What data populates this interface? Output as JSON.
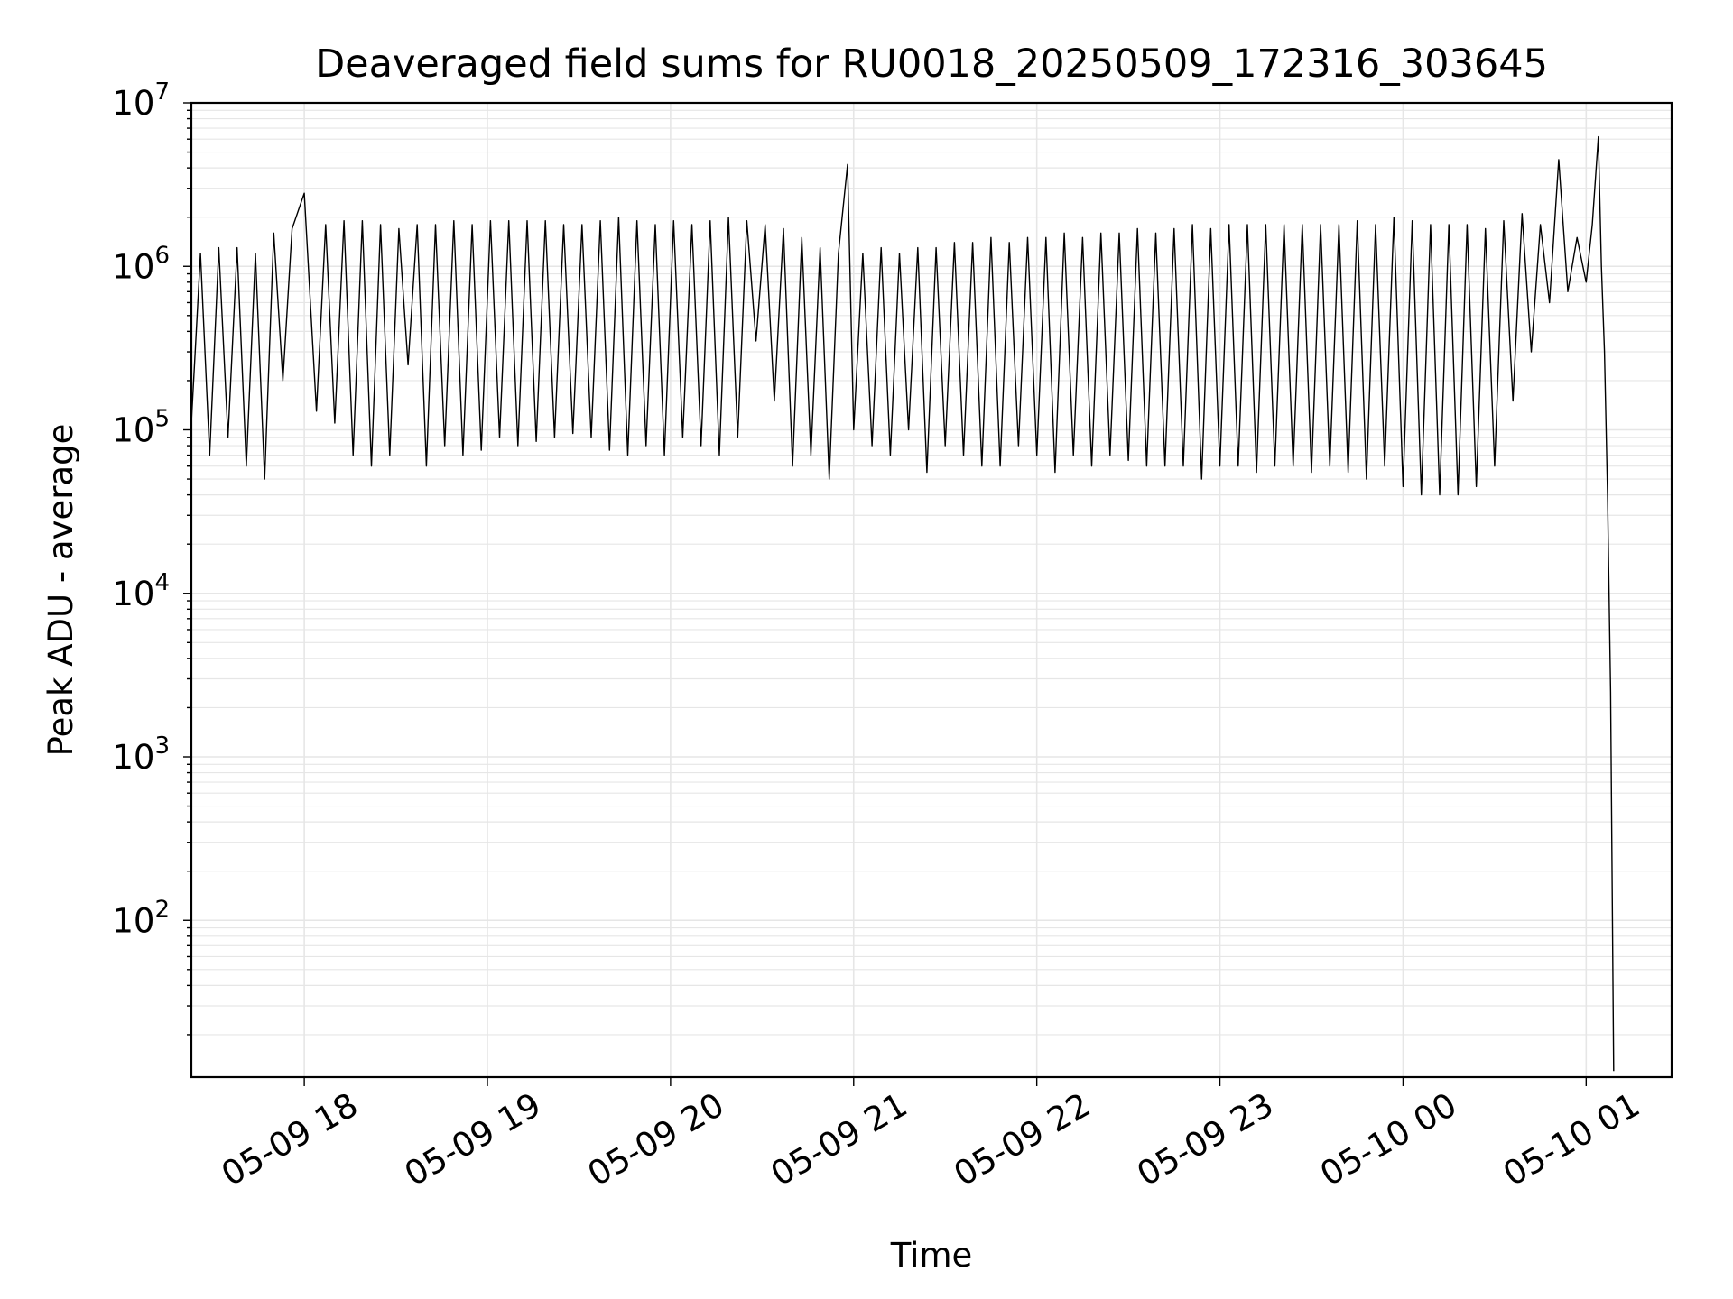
{
  "chart_data": {
    "type": "line",
    "title": "Deaveraged field sums for RU0018_20250509_172316_303645",
    "xlabel": "Time",
    "ylabel": "Peak ADU - average",
    "yscale": "log",
    "ylim": [
      11,
      10000000
    ],
    "xlim": [
      "05-09 17:23",
      "05-10 01:28"
    ],
    "grid": true,
    "line_color": "#000000",
    "grid_color": "#e6e6e6",
    "x_ticks": [
      "05-09 18",
      "05-09 19",
      "05-09 20",
      "05-09 21",
      "05-09 22",
      "05-09 23",
      "05-10 00",
      "05-10 01"
    ],
    "y_ticks": [
      {
        "value": 100,
        "base": "10",
        "exp": "2"
      },
      {
        "value": 1000,
        "base": "10",
        "exp": "3"
      },
      {
        "value": 10000,
        "base": "10",
        "exp": "4"
      },
      {
        "value": 100000,
        "base": "10",
        "exp": "5"
      },
      {
        "value": 1000000,
        "base": "10",
        "exp": "6"
      },
      {
        "value": 10000000,
        "base": "10",
        "exp": "7"
      }
    ],
    "series": [
      {
        "x": [
          "05-09 17:23",
          "05-09 17:26",
          "05-09 17:29",
          "05-09 17:32",
          "05-09 17:35",
          "05-09 17:38",
          "05-09 17:41",
          "05-09 17:44",
          "05-09 17:47",
          "05-09 17:50",
          "05-09 17:53",
          "05-09 17:56",
          "05-09 18:00",
          "05-09 18:04",
          "05-09 18:07",
          "05-09 18:10",
          "05-09 18:13",
          "05-09 18:16",
          "05-09 18:19",
          "05-09 18:22",
          "05-09 18:25",
          "05-09 18:28",
          "05-09 18:31",
          "05-09 18:34",
          "05-09 18:37",
          "05-09 18:40",
          "05-09 18:43",
          "05-09 18:46",
          "05-09 18:49",
          "05-09 18:52",
          "05-09 18:55",
          "05-09 18:58",
          "05-09 19:01",
          "05-09 19:04",
          "05-09 19:07",
          "05-09 19:10",
          "05-09 19:13",
          "05-09 19:16",
          "05-09 19:19",
          "05-09 19:22",
          "05-09 19:25",
          "05-09 19:28",
          "05-09 19:31",
          "05-09 19:34",
          "05-09 19:37",
          "05-09 19:40",
          "05-09 19:43",
          "05-09 19:46",
          "05-09 19:49",
          "05-09 19:52",
          "05-09 19:55",
          "05-09 19:58",
          "05-09 20:01",
          "05-09 20:04",
          "05-09 20:07",
          "05-09 20:10",
          "05-09 20:13",
          "05-09 20:16",
          "05-09 20:19",
          "05-09 20:22",
          "05-09 20:25",
          "05-09 20:28",
          "05-09 20:31",
          "05-09 20:34",
          "05-09 20:37",
          "05-09 20:40",
          "05-09 20:43",
          "05-09 20:46",
          "05-09 20:49",
          "05-09 20:52",
          "05-09 20:55",
          "05-09 20:58",
          "05-09 21:00",
          "05-09 21:03",
          "05-09 21:06",
          "05-09 21:09",
          "05-09 21:12",
          "05-09 21:15",
          "05-09 21:18",
          "05-09 21:21",
          "05-09 21:24",
          "05-09 21:27",
          "05-09 21:30",
          "05-09 21:33",
          "05-09 21:36",
          "05-09 21:39",
          "05-09 21:42",
          "05-09 21:45",
          "05-09 21:48",
          "05-09 21:51",
          "05-09 21:54",
          "05-09 21:57",
          "05-09 22:00",
          "05-09 22:03",
          "05-09 22:06",
          "05-09 22:09",
          "05-09 22:12",
          "05-09 22:15",
          "05-09 22:18",
          "05-09 22:21",
          "05-09 22:24",
          "05-09 22:27",
          "05-09 22:30",
          "05-09 22:33",
          "05-09 22:36",
          "05-09 22:39",
          "05-09 22:42",
          "05-09 22:45",
          "05-09 22:48",
          "05-09 22:51",
          "05-09 22:54",
          "05-09 22:57",
          "05-09 23:00",
          "05-09 23:03",
          "05-09 23:06",
          "05-09 23:09",
          "05-09 23:12",
          "05-09 23:15",
          "05-09 23:18",
          "05-09 23:21",
          "05-09 23:24",
          "05-09 23:27",
          "05-09 23:30",
          "05-09 23:33",
          "05-09 23:36",
          "05-09 23:39",
          "05-09 23:42",
          "05-09 23:45",
          "05-09 23:48",
          "05-09 23:51",
          "05-09 23:54",
          "05-09 23:57",
          "05-10 00:00",
          "05-10 00:03",
          "05-10 00:06",
          "05-10 00:09",
          "05-10 00:12",
          "05-10 00:15",
          "05-10 00:18",
          "05-10 00:21",
          "05-10 00:24",
          "05-10 00:27",
          "05-10 00:30",
          "05-10 00:33",
          "05-10 00:36",
          "05-10 00:39",
          "05-10 00:42",
          "05-10 00:45",
          "05-10 00:48",
          "05-10 00:51",
          "05-10 00:54",
          "05-10 00:57",
          "05-10 01:00",
          "05-10 01:02",
          "05-10 01:04",
          "05-10 01:05",
          "05-10 01:06",
          "05-10 01:07",
          "05-10 01:08",
          "05-10 01:09"
        ],
        "y": [
          110000,
          1200000,
          70000,
          1300000,
          90000,
          1300000,
          60000,
          1200000,
          50000,
          1600000,
          200000,
          1700000,
          2800000,
          130000,
          1800000,
          110000,
          1900000,
          70000,
          1900000,
          60000,
          1800000,
          70000,
          1700000,
          250000,
          1800000,
          60000,
          1800000,
          80000,
          1900000,
          70000,
          1800000,
          75000,
          1900000,
          90000,
          1900000,
          80000,
          1900000,
          85000,
          1900000,
          90000,
          1800000,
          95000,
          1800000,
          90000,
          1900000,
          75000,
          2000000,
          70000,
          1900000,
          80000,
          1800000,
          70000,
          1900000,
          90000,
          1800000,
          80000,
          1900000,
          70000,
          2000000,
          90000,
          1900000,
          350000,
          1800000,
          150000,
          1700000,
          60000,
          1500000,
          70000,
          1300000,
          50000,
          1200000,
          4200000,
          100000,
          1200000,
          80000,
          1300000,
          70000,
          1200000,
          100000,
          1300000,
          55000,
          1300000,
          80000,
          1400000,
          70000,
          1400000,
          60000,
          1500000,
          60000,
          1400000,
          80000,
          1500000,
          70000,
          1500000,
          55000,
          1600000,
          70000,
          1500000,
          60000,
          1600000,
          70000,
          1600000,
          65000,
          1700000,
          60000,
          1600000,
          60000,
          1700000,
          60000,
          1800000,
          50000,
          1700000,
          60000,
          1800000,
          60000,
          1800000,
          55000,
          1800000,
          60000,
          1800000,
          60000,
          1800000,
          55000,
          1800000,
          60000,
          1800000,
          55000,
          1900000,
          50000,
          1800000,
          60000,
          2000000,
          45000,
          1900000,
          40000,
          1800000,
          40000,
          1800000,
          40000,
          1800000,
          45000,
          1700000,
          60000,
          1900000,
          150000,
          2100000,
          300000,
          1800000,
          600000,
          4500000,
          700000,
          1500000,
          800000,
          1800000,
          6200000,
          1000000,
          300000,
          40000,
          2500,
          12
        ]
      }
    ]
  }
}
